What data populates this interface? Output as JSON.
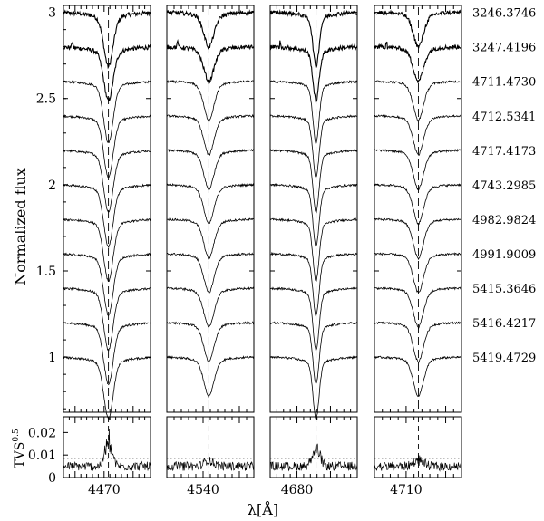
{
  "chart_data": {
    "type": "line",
    "title": "",
    "ylabel": "Normalized flux",
    "xlabel": "λ[Å]",
    "tvs_ylabel": "TVS",
    "tvs_ylabel_exp": "0.5",
    "ylim": [
      0.68,
      3.04
    ],
    "yticks": [
      1,
      1.5,
      2,
      2.5,
      3
    ],
    "ytick_labels": [
      "1",
      "1.5",
      "2",
      "2.5",
      "3"
    ],
    "tvs_ylim": [
      0,
      0.027
    ],
    "tvs_yticks": [
      0,
      0.01,
      0.02
    ],
    "tvs_ytick_labels": [
      "0",
      "0.01",
      "0.02"
    ],
    "tvs_threshold": 0.0085,
    "panels": [
      {
        "line_center": 4471.5,
        "xlim": [
          4456,
          4486
        ],
        "xtick_label": "4470",
        "xtick_value": 4470,
        "depth": 0.3,
        "width": 1.6,
        "wing_width": 5.0
      },
      {
        "line_center": 4541.6,
        "xlim": [
          4530,
          4554
        ],
        "xtick_label": "4540",
        "xtick_value": 4540,
        "depth": 0.17,
        "width": 1.4,
        "wing_width": 3.0
      },
      {
        "line_center": 4685.7,
        "xlim": [
          4672,
          4698
        ],
        "xtick_label": "4680",
        "xtick_value": 4680,
        "depth": 0.3,
        "width": 0.9,
        "wing_width": 3.5
      },
      {
        "line_center": 4713.1,
        "xlim": [
          4702,
          4724
        ],
        "xtick_label": "4710",
        "xtick_value": 4710,
        "depth": 0.17,
        "width": 1.3,
        "wing_width": 2.5
      }
    ],
    "series": [
      {
        "name": "3246.3746",
        "offset": 3.0
      },
      {
        "name": "3247.4196",
        "offset": 2.8
      },
      {
        "name": "4711.4730",
        "offset": 2.6
      },
      {
        "name": "4712.5341",
        "offset": 2.4
      },
      {
        "name": "4717.4173",
        "offset": 2.2
      },
      {
        "name": "4743.2985",
        "offset": 2.0
      },
      {
        "name": "4982.9824",
        "offset": 1.8
      },
      {
        "name": "4991.9009",
        "offset": 1.6
      },
      {
        "name": "5415.3646",
        "offset": 1.4
      },
      {
        "name": "5416.4217",
        "offset": 1.2
      },
      {
        "name": "5419.4729",
        "offset": 1.0
      }
    ],
    "grid": false,
    "legend": "right"
  }
}
